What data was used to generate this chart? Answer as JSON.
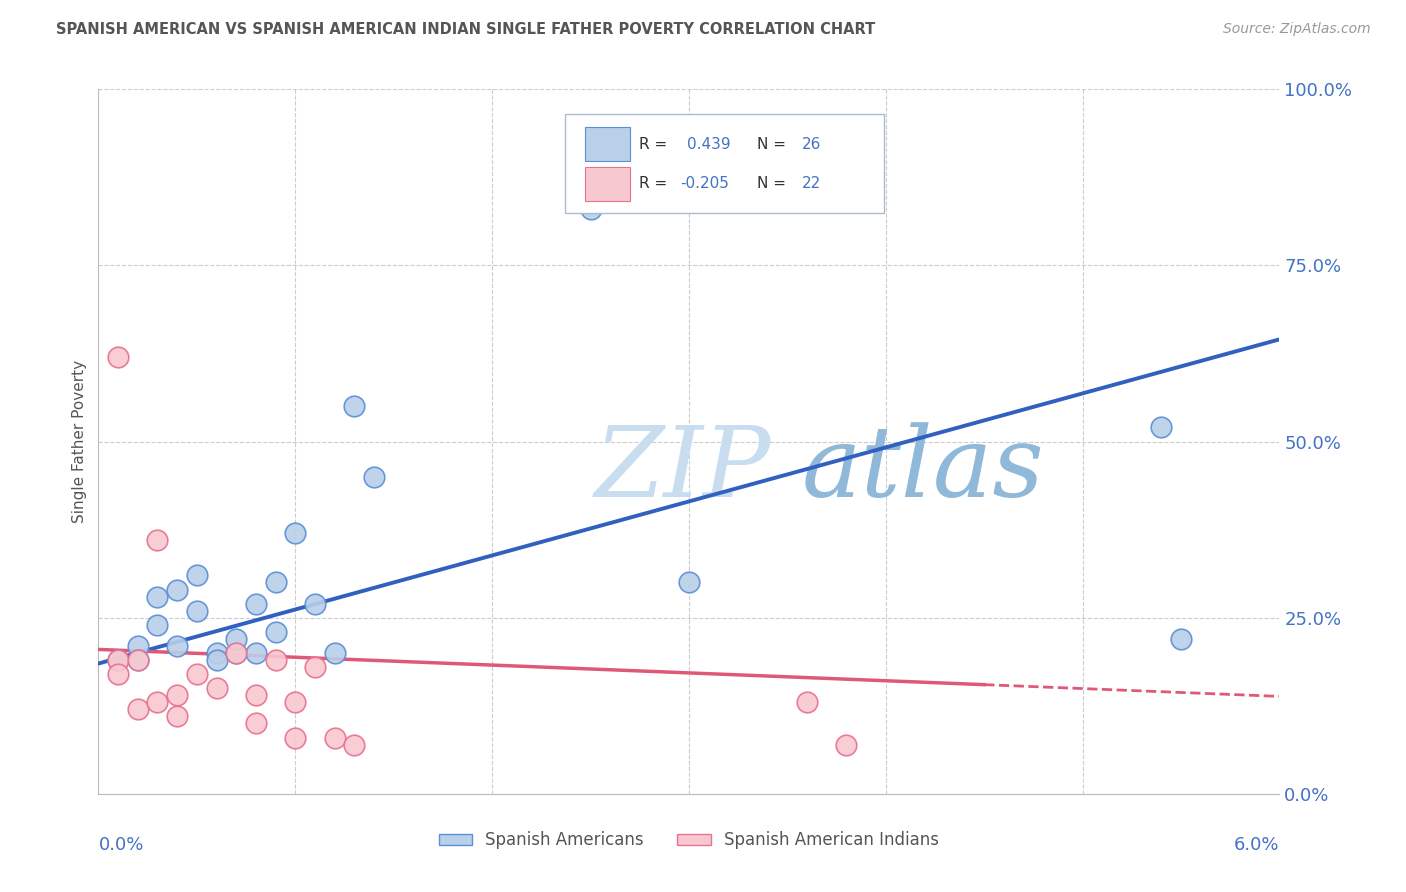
{
  "title": "SPANISH AMERICAN VS SPANISH AMERICAN INDIAN SINGLE FATHER POVERTY CORRELATION CHART",
  "source": "Source: ZipAtlas.com",
  "ylabel": "Single Father Poverty",
  "y_tick_labels": [
    "0.0%",
    "25.0%",
    "50.0%",
    "75.0%",
    "100.0%"
  ],
  "y_tick_values": [
    0.0,
    0.25,
    0.5,
    0.75,
    1.0
  ],
  "x_tick_values": [
    0.0,
    0.01,
    0.02,
    0.03,
    0.04,
    0.05,
    0.06
  ],
  "xlim": [
    0.0,
    0.06
  ],
  "ylim": [
    0.0,
    1.0
  ],
  "blue_R": 0.439,
  "blue_N": 26,
  "pink_R": -0.205,
  "pink_N": 22,
  "blue_color": "#b8d0e8",
  "blue_edge_color": "#5b8ed6",
  "blue_line_color": "#3060c0",
  "pink_color": "#f8c8d0",
  "pink_edge_color": "#e87090",
  "pink_line_color": "#e05878",
  "title_color": "#555555",
  "source_color": "#999999",
  "axis_label_color": "#4472c4",
  "grid_color": "#cccccc",
  "watermark_zip_color": "#c8ddf0",
  "watermark_atlas_color": "#90b8d8",
  "background_color": "#ffffff",
  "blue_x": [
    0.001,
    0.002,
    0.002,
    0.003,
    0.003,
    0.004,
    0.004,
    0.005,
    0.005,
    0.006,
    0.006,
    0.007,
    0.007,
    0.008,
    0.008,
    0.009,
    0.009,
    0.01,
    0.011,
    0.012,
    0.013,
    0.014,
    0.025,
    0.03,
    0.054,
    0.055
  ],
  "blue_y": [
    0.19,
    0.21,
    0.19,
    0.28,
    0.24,
    0.29,
    0.21,
    0.26,
    0.31,
    0.2,
    0.19,
    0.2,
    0.22,
    0.27,
    0.2,
    0.3,
    0.23,
    0.37,
    0.27,
    0.2,
    0.55,
    0.45,
    0.83,
    0.3,
    0.52,
    0.22
  ],
  "pink_x": [
    0.001,
    0.001,
    0.001,
    0.002,
    0.002,
    0.003,
    0.003,
    0.004,
    0.004,
    0.005,
    0.006,
    0.007,
    0.008,
    0.008,
    0.009,
    0.01,
    0.01,
    0.011,
    0.012,
    0.013,
    0.036,
    0.038
  ],
  "pink_y": [
    0.19,
    0.17,
    0.62,
    0.12,
    0.19,
    0.13,
    0.36,
    0.11,
    0.14,
    0.17,
    0.15,
    0.2,
    0.14,
    0.1,
    0.19,
    0.08,
    0.13,
    0.18,
    0.08,
    0.07,
    0.13,
    0.07
  ],
  "blue_line_x0": 0.0,
  "blue_line_x1": 0.06,
  "blue_line_y0": 0.185,
  "blue_line_y1": 0.645,
  "pink_line_x0": 0.0,
  "pink_line_x1": 0.045,
  "pink_line_xd0": 0.045,
  "pink_line_xd1": 0.065,
  "pink_line_y0": 0.205,
  "pink_line_y1": 0.155,
  "legend_text_color": "#333333",
  "legend_value_color": "#4472c4",
  "marker_size": 220
}
